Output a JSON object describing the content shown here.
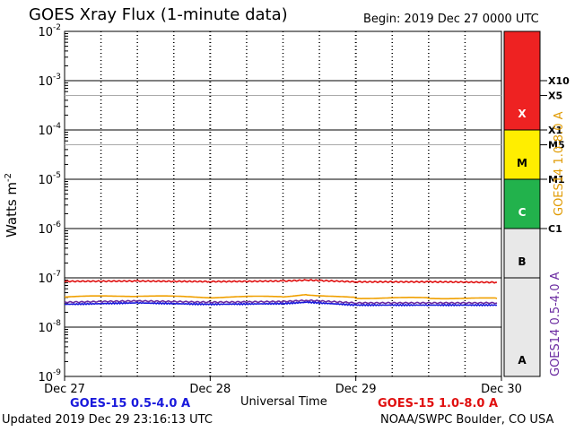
{
  "header": {
    "title": "GOES Xray Flux (1-minute data)",
    "begin": "Begin:  2019 Dec 27 0000 UTC"
  },
  "footer": {
    "updated": "Updated 2019 Dec 29 23:16:13 UTC",
    "credit": "NOAA/SWPC Boulder, CO USA"
  },
  "legend": {
    "short": "GOES-15 0.5-4.0 A",
    "long": "GOES-15 1.0-8.0 A"
  },
  "right_axis": {
    "long_label": "GOES14 1.0-8.0 A",
    "short_label": "GOES14 0.5-4.0 A"
  },
  "colors": {
    "long_series": "#e01010",
    "long_series_goes14": "#f0a000",
    "short_series": "#1a1adc",
    "short_series_goes14": "#6a2aa0",
    "class_x": "#ee2222",
    "class_m": "#ffee00",
    "class_c": "#22b24c",
    "class_ab": "#e8e8e8"
  },
  "chart_data": {
    "type": "line",
    "title": "GOES Xray Flux (1-minute data)",
    "xlabel": "Universal Time",
    "ylabel": "Watts m",
    "ylabel_sup": "-2",
    "yscale": "log",
    "ylim": [
      1e-09,
      0.01
    ],
    "y_tick_labels": [
      {
        "base": "10",
        "exp": "-9",
        "value": 1e-09
      },
      {
        "base": "10",
        "exp": "-8",
        "value": 1e-08
      },
      {
        "base": "10",
        "exp": "-7",
        "value": 1e-07
      },
      {
        "base": "10",
        "exp": "-6",
        "value": 1e-06
      },
      {
        "base": "10",
        "exp": "-5",
        "value": 1e-05
      },
      {
        "base": "10",
        "exp": "-4",
        "value": 0.0001
      },
      {
        "base": "10",
        "exp": "-3",
        "value": 0.001
      },
      {
        "base": "10",
        "exp": "-2",
        "value": 0.01
      }
    ],
    "x_tick_labels": [
      "Dec 27",
      "Dec 28",
      "Dec 29",
      "Dec 30"
    ],
    "xlim": [
      "2019-12-27",
      "2019-12-30"
    ],
    "flare_levels": [
      {
        "label": "X10",
        "value": 0.001
      },
      {
        "label": "X5",
        "value": 0.0005
      },
      {
        "label": "X1",
        "value": 0.0001
      },
      {
        "label": "M5",
        "value": 5e-05
      },
      {
        "label": "M1",
        "value": 1e-05
      },
      {
        "label": "C1",
        "value": 1e-06
      }
    ],
    "classes": [
      {
        "label": "X",
        "from": 0.0001,
        "to": 0.01
      },
      {
        "label": "M",
        "from": 1e-05,
        "to": 0.0001
      },
      {
        "label": "C",
        "from": 1e-06,
        "to": 1e-05
      },
      {
        "label": "B",
        "from": 1e-07,
        "to": 1e-06
      },
      {
        "label": "A",
        "from": 1e-09,
        "to": 1e-07
      }
    ],
    "grid": true,
    "series": [
      {
        "name": "GOES-15 1.0-8.0 A",
        "color": "#e01010",
        "x": [
          "2019-12-27",
          "2019-12-27T12:00",
          "2019-12-28",
          "2019-12-28T12:00",
          "2019-12-28T16:00",
          "2019-12-29",
          "2019-12-29T12:00",
          "2019-12-29T23:16"
        ],
        "y": [
          8.5e-08,
          8.6e-08,
          8.4e-08,
          8.6e-08,
          9e-08,
          8.3e-08,
          8.3e-08,
          8.1e-08
        ]
      },
      {
        "name": "GOES14 1.0-8.0 A",
        "color": "#f0a000",
        "x": [
          "2019-12-27",
          "2019-12-27T12:00",
          "2019-12-28",
          "2019-12-28T12:00",
          "2019-12-28T16:00",
          "2019-12-29",
          "2019-12-29T12:00",
          "2019-12-29T23:16"
        ],
        "y": [
          4.1e-08,
          4.3e-08,
          4e-08,
          4.2e-08,
          4.6e-08,
          3.9e-08,
          3.9e-08,
          3.8e-08
        ]
      },
      {
        "name": "GOES14 0.5-4.0 A",
        "color": "#6a2aa0",
        "x": [
          "2019-12-27",
          "2019-12-27T12:00",
          "2019-12-28",
          "2019-12-28T12:00",
          "2019-12-28T16:00",
          "2019-12-29",
          "2019-12-29T12:00",
          "2019-12-29T23:16"
        ],
        "y": [
          3.2e-08,
          3.4e-08,
          3.2e-08,
          3.3e-08,
          3.5e-08,
          3.1e-08,
          3.1e-08,
          3.1e-08
        ]
      },
      {
        "name": "GOES-15 0.5-4.0 A",
        "color": "#1a1adc",
        "x": [
          "2019-12-27",
          "2019-12-27T12:00",
          "2019-12-28",
          "2019-12-28T12:00",
          "2019-12-28T16:00",
          "2019-12-29",
          "2019-12-29T12:00",
          "2019-12-29T23:16"
        ],
        "y": [
          2.9e-08,
          3.1e-08,
          2.9e-08,
          3e-08,
          3.2e-08,
          2.8e-08,
          2.8e-08,
          2.8e-08
        ]
      }
    ]
  }
}
